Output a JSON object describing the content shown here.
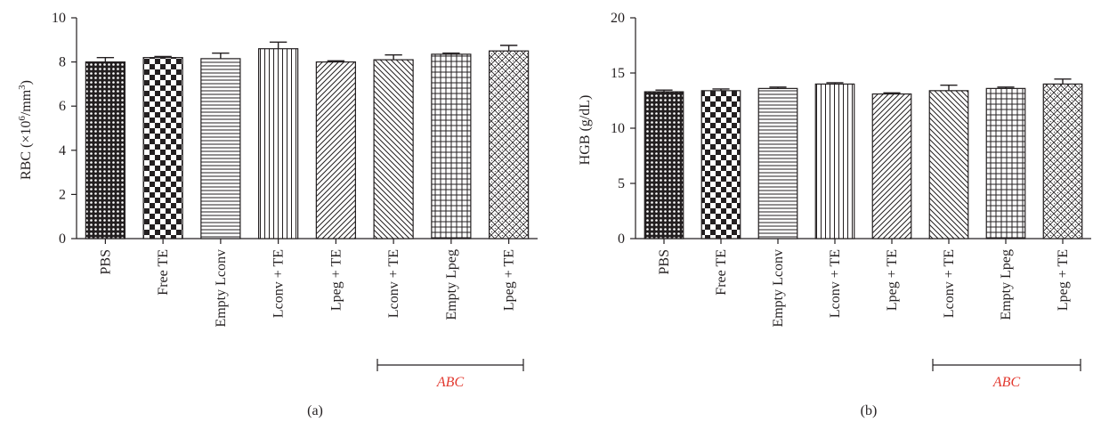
{
  "colors": {
    "ink": "#231f20",
    "abc": "#e2382e",
    "bar_fill": "#ffffff"
  },
  "chart_data": [
    {
      "type": "bar",
      "panel_label": "(a)",
      "ylabel_prefix": "RBC (×10",
      "ylabel_exp1": "6",
      "ylabel_mid": "/mm",
      "ylabel_exp2": "3",
      "ylabel_suffix": ")",
      "ylim": [
        0,
        10
      ],
      "yticks": [
        0,
        2,
        4,
        6,
        8,
        10
      ],
      "ytick_labels": [
        "0",
        "2",
        "4",
        "6",
        "8",
        "10"
      ],
      "categories": [
        "PBS",
        "Free TE",
        "Empty Lconv",
        "Lconv + TE",
        "Lpeg + TE",
        "Lconv + TE",
        "Empty Lpeg",
        "Lpeg + TE"
      ],
      "patterns": [
        "dots",
        "checker",
        "hlines",
        "vlines",
        "diag_right",
        "diag_left",
        "grid",
        "diamond"
      ],
      "values": [
        8.0,
        8.2,
        8.15,
        8.6,
        8.0,
        8.1,
        8.35,
        8.5
      ],
      "errors": [
        0.2,
        0.05,
        0.25,
        0.3,
        0.05,
        0.22,
        0.05,
        0.25
      ],
      "bracket_label": "ABC",
      "bracket_range": [
        5,
        7
      ]
    },
    {
      "type": "bar",
      "panel_label": "(b)",
      "ylabel": "HGB (g/dL)",
      "ylim": [
        0,
        20
      ],
      "yticks": [
        0,
        5,
        10,
        15,
        20
      ],
      "ytick_labels": [
        "0",
        "5",
        "10",
        "15",
        "20"
      ],
      "categories": [
        "PBS",
        "Free TE",
        "Empty Lconv",
        "Lconv + TE",
        "Lpeg + TE",
        "Lconv + TE",
        "Empty Lpeg",
        "Lpeg + TE"
      ],
      "patterns": [
        "dots",
        "checker",
        "hlines",
        "vlines",
        "diag_right",
        "diag_left",
        "grid",
        "diamond"
      ],
      "values": [
        13.3,
        13.4,
        13.6,
        14.0,
        13.1,
        13.4,
        13.6,
        14.0
      ],
      "errors": [
        0.15,
        0.15,
        0.12,
        0.12,
        0.1,
        0.5,
        0.12,
        0.45
      ],
      "bracket_label": "ABC",
      "bracket_range": [
        5,
        7
      ]
    }
  ]
}
